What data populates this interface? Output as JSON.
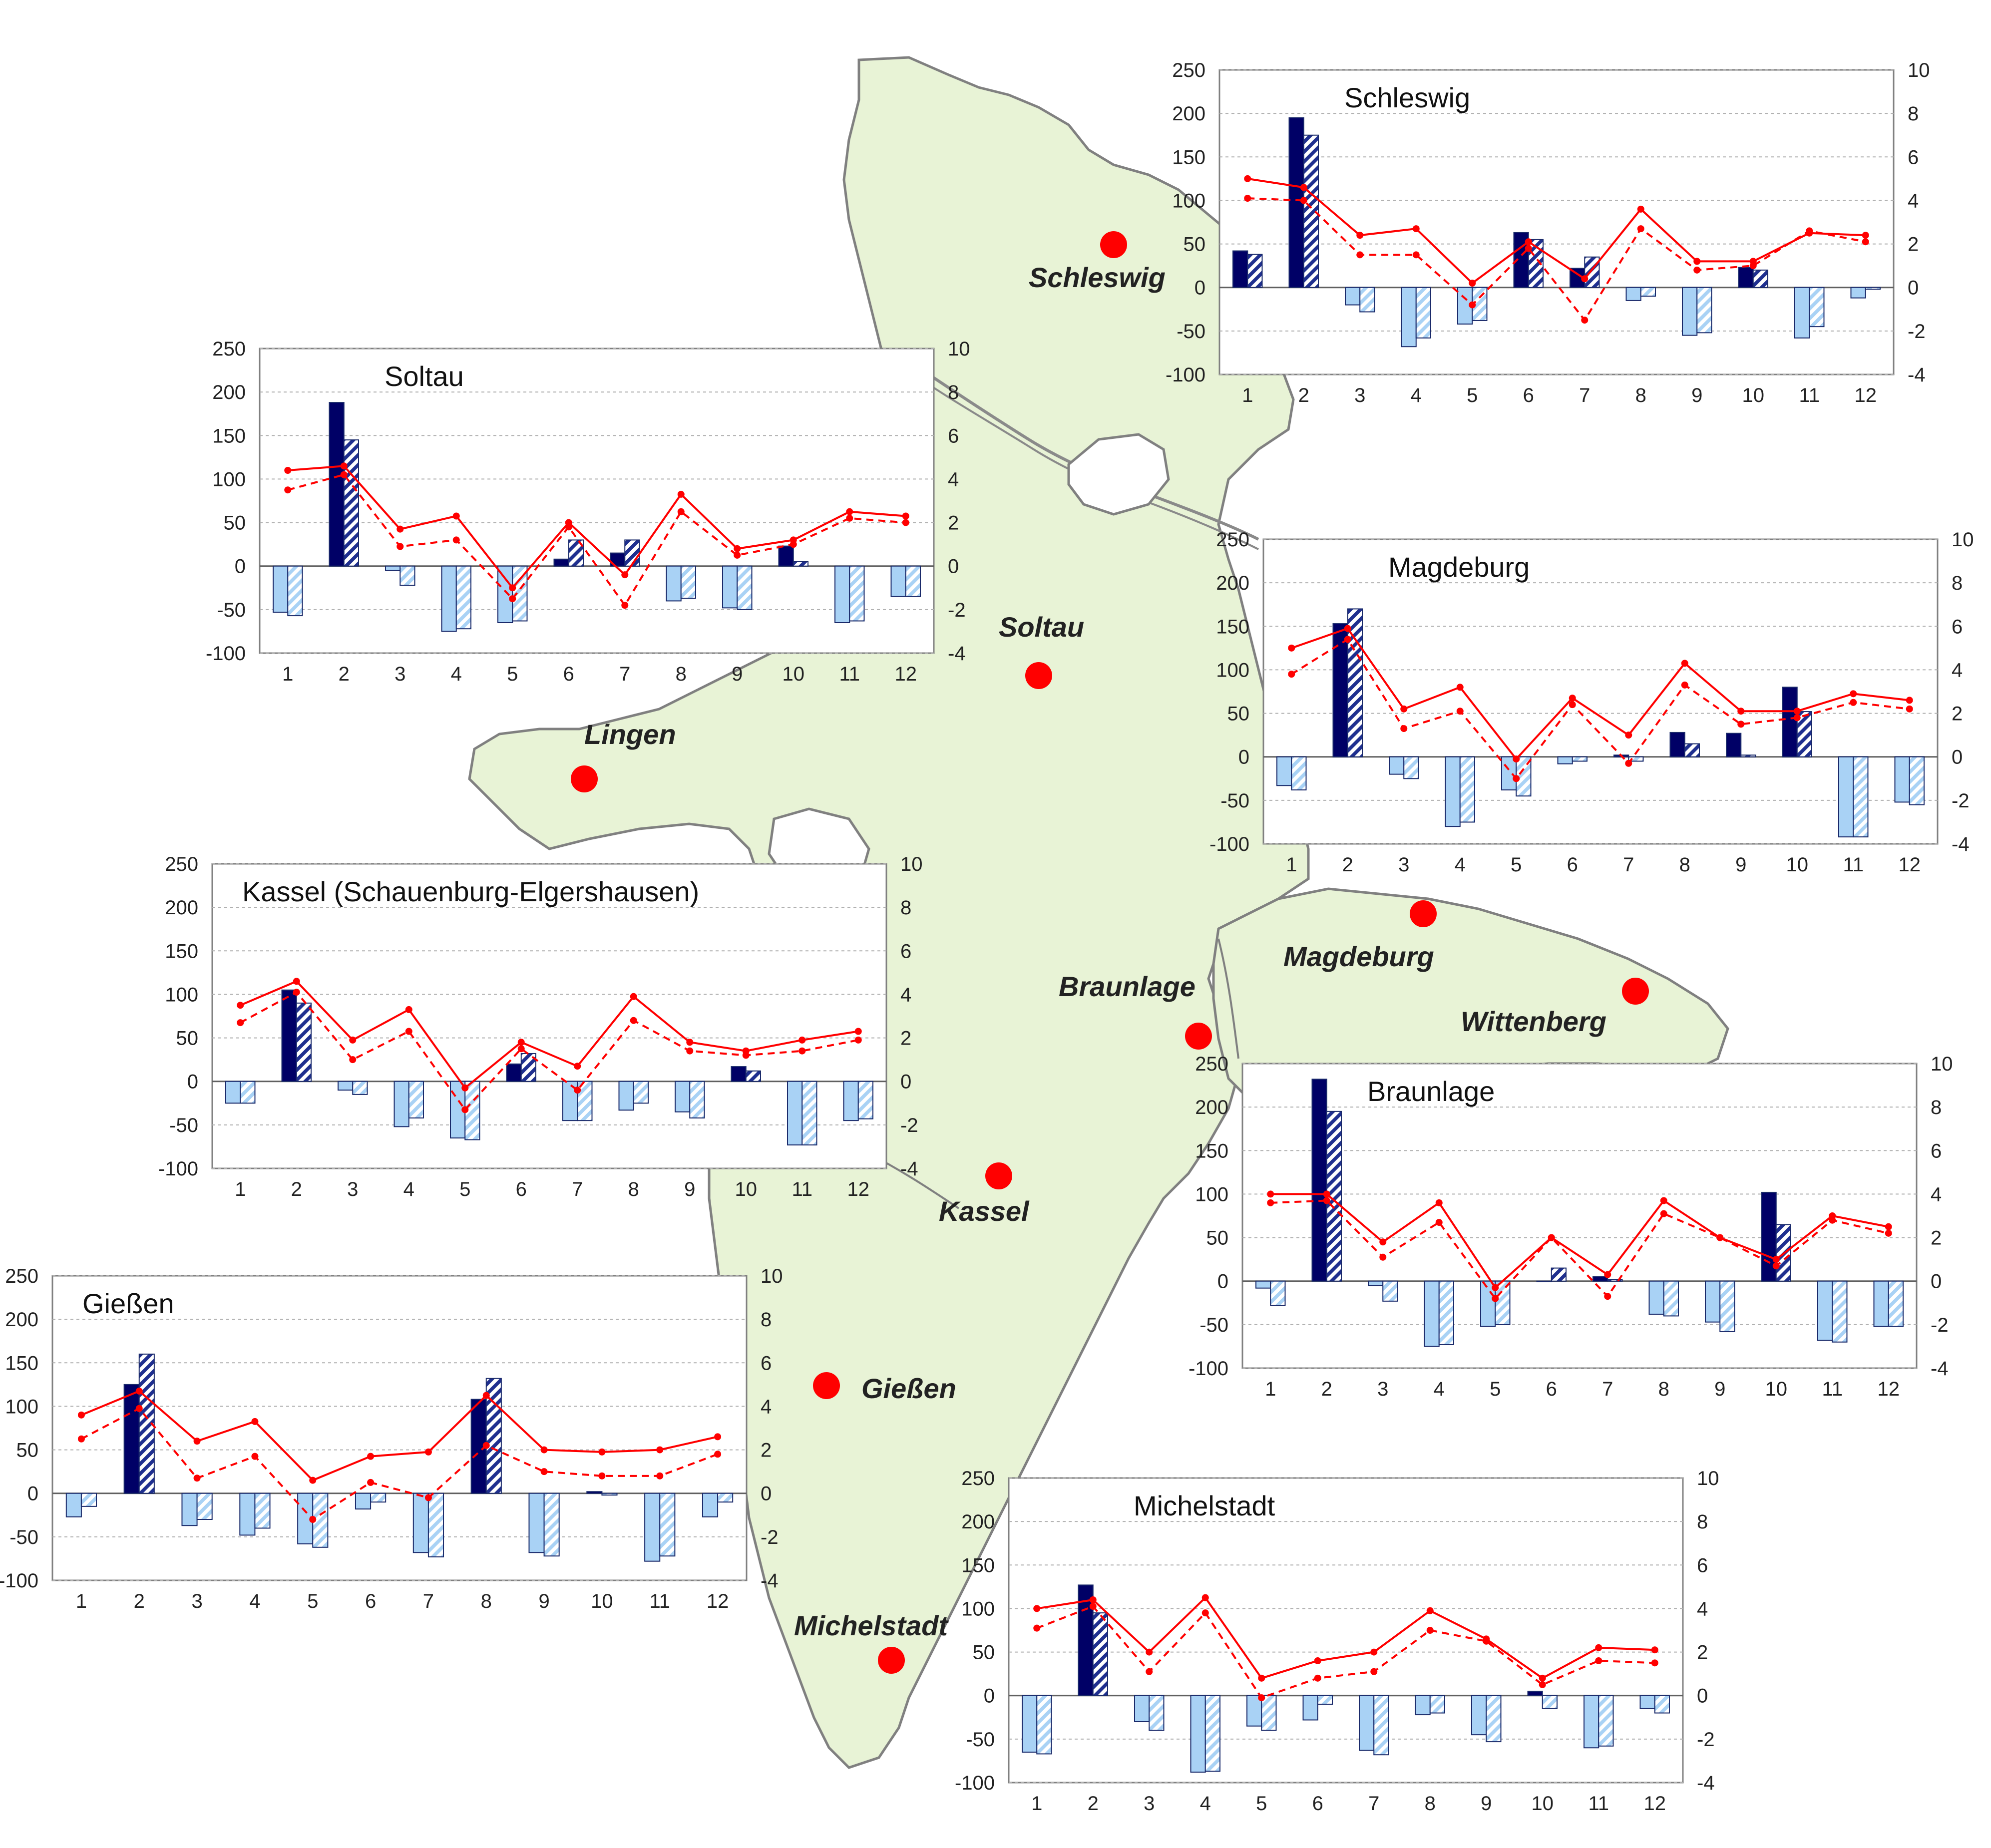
{
  "map": {
    "land_color": "#e8f3d6",
    "border_color": "#808080",
    "river_color": "#8a8a8a",
    "city_color": "#ff0000",
    "cities": [
      {
        "id": "schleswig",
        "name": "Schleswig"
      },
      {
        "id": "soltau",
        "name": "Soltau"
      },
      {
        "id": "lingen",
        "name": "Lingen"
      },
      {
        "id": "magdeburg",
        "name": "Magdeburg"
      },
      {
        "id": "braunlage",
        "name": "Braunlage"
      },
      {
        "id": "wittenberg",
        "name": "Wittenberg"
      },
      {
        "id": "kassel",
        "name": "Kassel"
      },
      {
        "id": "giessen",
        "name": "Gießen"
      },
      {
        "id": "michelstadt",
        "name": "Michelstadt"
      }
    ]
  },
  "legend_colors": {
    "bar_positive_solid": "#000066",
    "bar_positive_hatch": "#1f2f8f",
    "bar_negative_solid": "#a9d2f5",
    "bar_negative_hatch": "#a9d2f5",
    "line": "#ff0000"
  },
  "chart_data": [
    {
      "id": "schleswig",
      "type": "bar",
      "title": "Schleswig",
      "categories": [
        "1",
        "2",
        "3",
        "4",
        "5",
        "6",
        "7",
        "8",
        "9",
        "10",
        "11",
        "12"
      ],
      "ylim": [
        -100,
        250
      ],
      "yticks": [
        "-100",
        "-50",
        "0",
        "50",
        "100",
        "150",
        "200",
        "250"
      ],
      "y2lim": [
        -4,
        10
      ],
      "y2ticks": [
        "-4",
        "-2",
        "0",
        "2",
        "4",
        "6",
        "8",
        "10"
      ],
      "series": [
        {
          "axis": "left",
          "style": "solid",
          "values": [
            42,
            195,
            -20,
            -68,
            -42,
            63,
            22,
            -15,
            -55,
            23,
            -58,
            -12
          ]
        },
        {
          "axis": "left",
          "style": "hatch",
          "values": [
            38,
            175,
            -28,
            -58,
            -38,
            55,
            35,
            -10,
            -52,
            20,
            -45,
            -2
          ]
        },
        {
          "axis": "right",
          "style": "solid",
          "values": [
            5.0,
            4.6,
            2.4,
            2.7,
            0.2,
            2.1,
            0.4,
            3.6,
            1.2,
            1.2,
            2.5,
            2.4
          ]
        },
        {
          "axis": "right",
          "style": "dashed",
          "values": [
            4.1,
            4.0,
            1.5,
            1.5,
            -0.8,
            1.8,
            -1.5,
            2.7,
            0.8,
            1.0,
            2.6,
            2.1
          ]
        }
      ]
    },
    {
      "id": "soltau",
      "type": "bar",
      "title": "Soltau",
      "categories": [
        "1",
        "2",
        "3",
        "4",
        "5",
        "6",
        "7",
        "8",
        "9",
        "10",
        "11",
        "12"
      ],
      "ylim": [
        -100,
        250
      ],
      "yticks": [
        "-100",
        "-50",
        "0",
        "50",
        "100",
        "150",
        "200",
        "250"
      ],
      "y2lim": [
        -4,
        10
      ],
      "y2ticks": [
        "-4",
        "-2",
        "0",
        "2",
        "4",
        "6",
        "8",
        "10"
      ],
      "series": [
        {
          "axis": "left",
          "style": "solid",
          "values": [
            -53,
            188,
            -5,
            -75,
            -65,
            8,
            15,
            -40,
            -48,
            23,
            -65,
            -35
          ]
        },
        {
          "axis": "left",
          "style": "hatch",
          "values": [
            -57,
            145,
            -22,
            -72,
            -63,
            30,
            30,
            -37,
            -50,
            5,
            -63,
            -35
          ]
        },
        {
          "axis": "right",
          "style": "solid",
          "values": [
            4.4,
            4.6,
            1.7,
            2.3,
            -1.0,
            2.0,
            -0.4,
            3.3,
            0.8,
            1.2,
            2.5,
            2.3
          ]
        },
        {
          "axis": "right",
          "style": "dashed",
          "values": [
            3.5,
            4.2,
            0.9,
            1.2,
            -1.5,
            1.8,
            -1.8,
            2.5,
            0.5,
            1.0,
            2.2,
            2.0
          ]
        }
      ]
    },
    {
      "id": "magdeburg",
      "type": "bar",
      "title": "Magdeburg",
      "categories": [
        "1",
        "2",
        "3",
        "4",
        "5",
        "6",
        "7",
        "8",
        "9",
        "10",
        "11",
        "12"
      ],
      "ylim": [
        -100,
        250
      ],
      "yticks": [
        "-100",
        "-50",
        "0",
        "50",
        "100",
        "150",
        "200",
        "250"
      ],
      "y2lim": [
        -4,
        10
      ],
      "y2ticks": [
        "-4",
        "-2",
        "0",
        "2",
        "4",
        "6",
        "8",
        "10"
      ],
      "series": [
        {
          "axis": "left",
          "style": "solid",
          "values": [
            -33,
            153,
            -20,
            -80,
            -38,
            -8,
            2,
            28,
            27,
            80,
            -92,
            -52
          ]
        },
        {
          "axis": "left",
          "style": "hatch",
          "values": [
            -38,
            170,
            -25,
            -75,
            -45,
            -5,
            -5,
            15,
            2,
            52,
            -92,
            -55
          ]
        },
        {
          "axis": "right",
          "style": "solid",
          "values": [
            5.0,
            5.9,
            2.2,
            3.2,
            -0.1,
            2.7,
            1.0,
            4.3,
            2.1,
            2.1,
            2.9,
            2.6
          ]
        },
        {
          "axis": "right",
          "style": "dashed",
          "values": [
            3.8,
            5.4,
            1.3,
            2.1,
            -1.0,
            2.4,
            -0.3,
            3.3,
            1.5,
            1.8,
            2.5,
            2.2
          ]
        }
      ]
    },
    {
      "id": "kassel",
      "type": "bar",
      "title": "Kassel (Schauenburg-Elgershausen)",
      "categories": [
        "1",
        "2",
        "3",
        "4",
        "5",
        "6",
        "7",
        "8",
        "9",
        "10",
        "11",
        "12"
      ],
      "ylim": [
        -100,
        250
      ],
      "yticks": [
        "-100",
        "-50",
        "0",
        "50",
        "100",
        "150",
        "200",
        "250"
      ],
      "y2lim": [
        -4,
        10
      ],
      "y2ticks": [
        "-4",
        "-2",
        "0",
        "2",
        "4",
        "6",
        "8",
        "10"
      ],
      "series": [
        {
          "axis": "left",
          "style": "solid",
          "values": [
            -25,
            105,
            -10,
            -52,
            -65,
            20,
            -45,
            -33,
            -35,
            17,
            -73,
            -45
          ]
        },
        {
          "axis": "left",
          "style": "hatch",
          "values": [
            -25,
            90,
            -15,
            -42,
            -67,
            32,
            -45,
            -25,
            -42,
            12,
            -73,
            -43
          ]
        },
        {
          "axis": "right",
          "style": "solid",
          "values": [
            3.5,
            4.6,
            1.9,
            3.3,
            -0.3,
            1.8,
            0.7,
            3.9,
            1.8,
            1.4,
            1.9,
            2.3
          ]
        },
        {
          "axis": "right",
          "style": "dashed",
          "values": [
            2.7,
            4.1,
            1.0,
            2.3,
            -1.3,
            1.5,
            -0.4,
            2.8,
            1.4,
            1.2,
            1.4,
            1.9
          ]
        }
      ]
    },
    {
      "id": "braunlage",
      "type": "bar",
      "title": "Braunlage",
      "categories": [
        "1",
        "2",
        "3",
        "4",
        "5",
        "6",
        "7",
        "8",
        "9",
        "10",
        "11",
        "12"
      ],
      "ylim": [
        -100,
        250
      ],
      "yticks": [
        "-100",
        "-50",
        "0",
        "50",
        "100",
        "150",
        "200",
        "250"
      ],
      "y2lim": [
        -4,
        10
      ],
      "y2ticks": [
        "-4",
        "-2",
        "0",
        "2",
        "4",
        "6",
        "8",
        "10"
      ],
      "series": [
        {
          "axis": "left",
          "style": "solid",
          "values": [
            -8,
            232,
            -5,
            -75,
            -52,
            0,
            5,
            -38,
            -47,
            102,
            -68,
            -52
          ]
        },
        {
          "axis": "left",
          "style": "hatch",
          "values": [
            -28,
            195,
            -23,
            -73,
            -50,
            15,
            2,
            -40,
            -58,
            65,
            -70,
            -52
          ]
        },
        {
          "axis": "right",
          "style": "solid",
          "values": [
            4.0,
            4.0,
            1.8,
            3.6,
            -0.3,
            2.0,
            0.3,
            3.7,
            2.0,
            1.0,
            3.0,
            2.5
          ]
        },
        {
          "axis": "right",
          "style": "dashed",
          "values": [
            3.6,
            3.7,
            1.1,
            2.7,
            -0.8,
            2.0,
            -0.7,
            3.1,
            2.0,
            0.7,
            2.8,
            2.2
          ]
        }
      ]
    },
    {
      "id": "giessen",
      "type": "bar",
      "title": "Gießen",
      "categories": [
        "1",
        "2",
        "3",
        "4",
        "5",
        "6",
        "7",
        "8",
        "9",
        "10",
        "11",
        "12"
      ],
      "ylim": [
        -100,
        250
      ],
      "yticks": [
        "-100",
        "-50",
        "0",
        "50",
        "100",
        "150",
        "200",
        "250"
      ],
      "y2lim": [
        -4,
        10
      ],
      "y2ticks": [
        "-4",
        "-2",
        "0",
        "2",
        "4",
        "6",
        "8",
        "10"
      ],
      "series": [
        {
          "axis": "left",
          "style": "solid",
          "values": [
            -27,
            125,
            -37,
            -48,
            -58,
            -18,
            -68,
            108,
            -68,
            2,
            -78,
            -27
          ]
        },
        {
          "axis": "left",
          "style": "hatch",
          "values": [
            -15,
            160,
            -30,
            -40,
            -62,
            -10,
            -73,
            132,
            -72,
            -2,
            -72,
            -10
          ]
        },
        {
          "axis": "right",
          "style": "solid",
          "values": [
            3.6,
            4.7,
            2.4,
            3.3,
            0.6,
            1.7,
            1.9,
            4.5,
            2.0,
            1.9,
            2.0,
            2.6
          ]
        },
        {
          "axis": "right",
          "style": "dashed",
          "values": [
            2.5,
            3.9,
            0.7,
            1.7,
            -1.2,
            0.5,
            -0.2,
            2.2,
            1.0,
            0.8,
            0.8,
            1.8
          ]
        }
      ]
    },
    {
      "id": "michelstadt",
      "type": "bar",
      "title": "Michelstadt",
      "categories": [
        "1",
        "2",
        "3",
        "4",
        "5",
        "6",
        "7",
        "8",
        "9",
        "10",
        "11",
        "12"
      ],
      "ylim": [
        -100,
        250
      ],
      "yticks": [
        "-100",
        "-50",
        "0",
        "50",
        "100",
        "150",
        "200",
        "250"
      ],
      "y2lim": [
        -4,
        10
      ],
      "y2ticks": [
        "-4",
        "-2",
        "0",
        "2",
        "4",
        "6",
        "8",
        "10"
      ],
      "series": [
        {
          "axis": "left",
          "style": "solid",
          "values": [
            -65,
            127,
            -30,
            -88,
            -35,
            -28,
            -63,
            -22,
            -45,
            5,
            -60,
            -15
          ]
        },
        {
          "axis": "left",
          "style": "hatch",
          "values": [
            -67,
            95,
            -40,
            -87,
            -40,
            -10,
            -68,
            -20,
            -53,
            -15,
            -58,
            -20
          ]
        },
        {
          "axis": "right",
          "style": "solid",
          "values": [
            4.0,
            4.4,
            2.0,
            4.5,
            0.8,
            1.6,
            2.0,
            3.9,
            2.6,
            0.8,
            2.2,
            2.1
          ]
        },
        {
          "axis": "right",
          "style": "dashed",
          "values": [
            3.1,
            4.1,
            1.1,
            3.8,
            -0.1,
            0.8,
            1.1,
            3.0,
            2.5,
            0.5,
            1.6,
            1.5
          ]
        }
      ]
    }
  ]
}
